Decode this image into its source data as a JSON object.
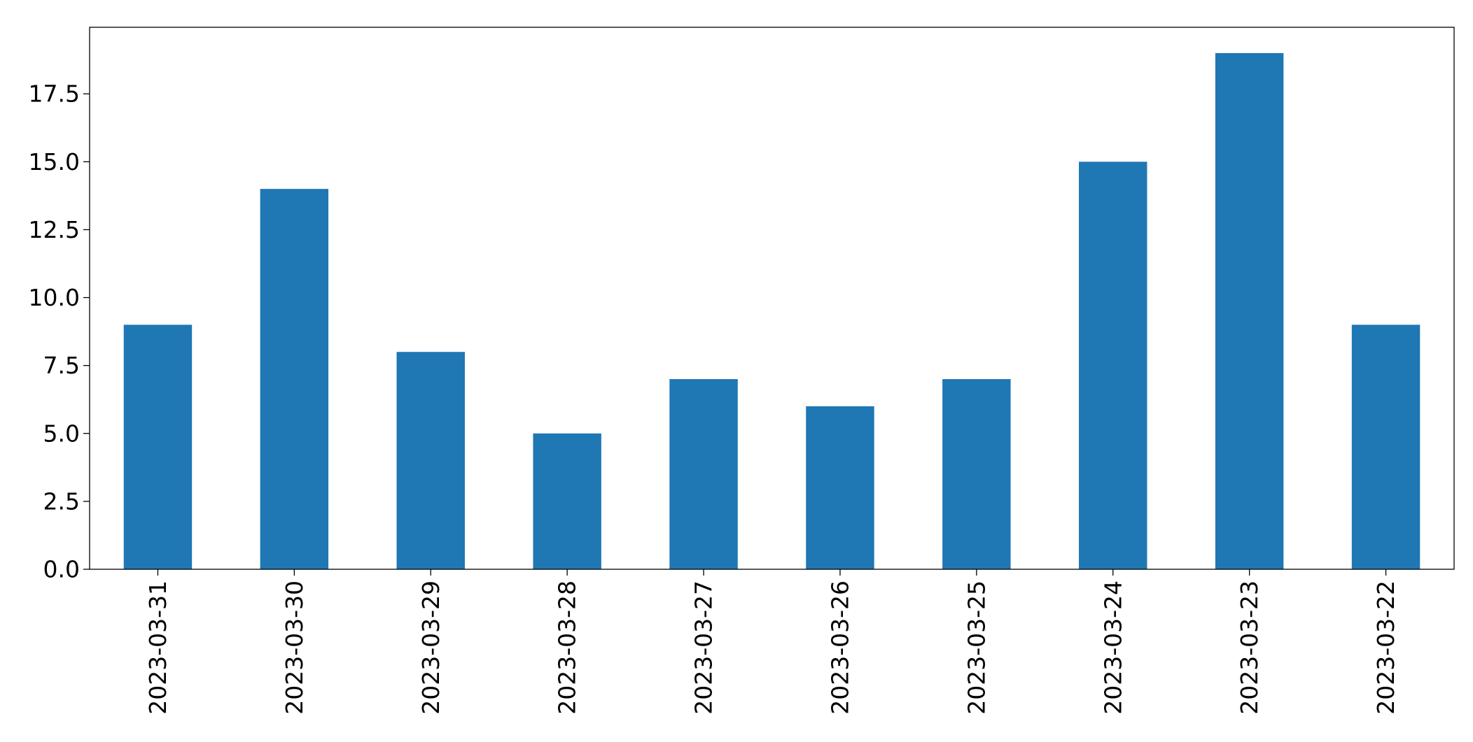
{
  "chart_data": {
    "type": "bar",
    "title": "",
    "xlabel": "",
    "ylabel": "",
    "categories": [
      "2023-03-31",
      "2023-03-30",
      "2023-03-29",
      "2023-03-28",
      "2023-03-27",
      "2023-03-26",
      "2023-03-25",
      "2023-03-24",
      "2023-03-23",
      "2023-03-22"
    ],
    "values": [
      9,
      14,
      8,
      5,
      7,
      6,
      7,
      15,
      19,
      9
    ],
    "ylim": [
      0,
      19.95
    ],
    "yticks": [
      "0.0",
      "2.5",
      "5.0",
      "7.5",
      "10.0",
      "12.5",
      "15.0",
      "17.5"
    ],
    "ytick_values": [
      0,
      2.5,
      5,
      7.5,
      10,
      12.5,
      15,
      17.5
    ],
    "bar_color": "#1f77b4",
    "grid": false,
    "legend": "none"
  }
}
